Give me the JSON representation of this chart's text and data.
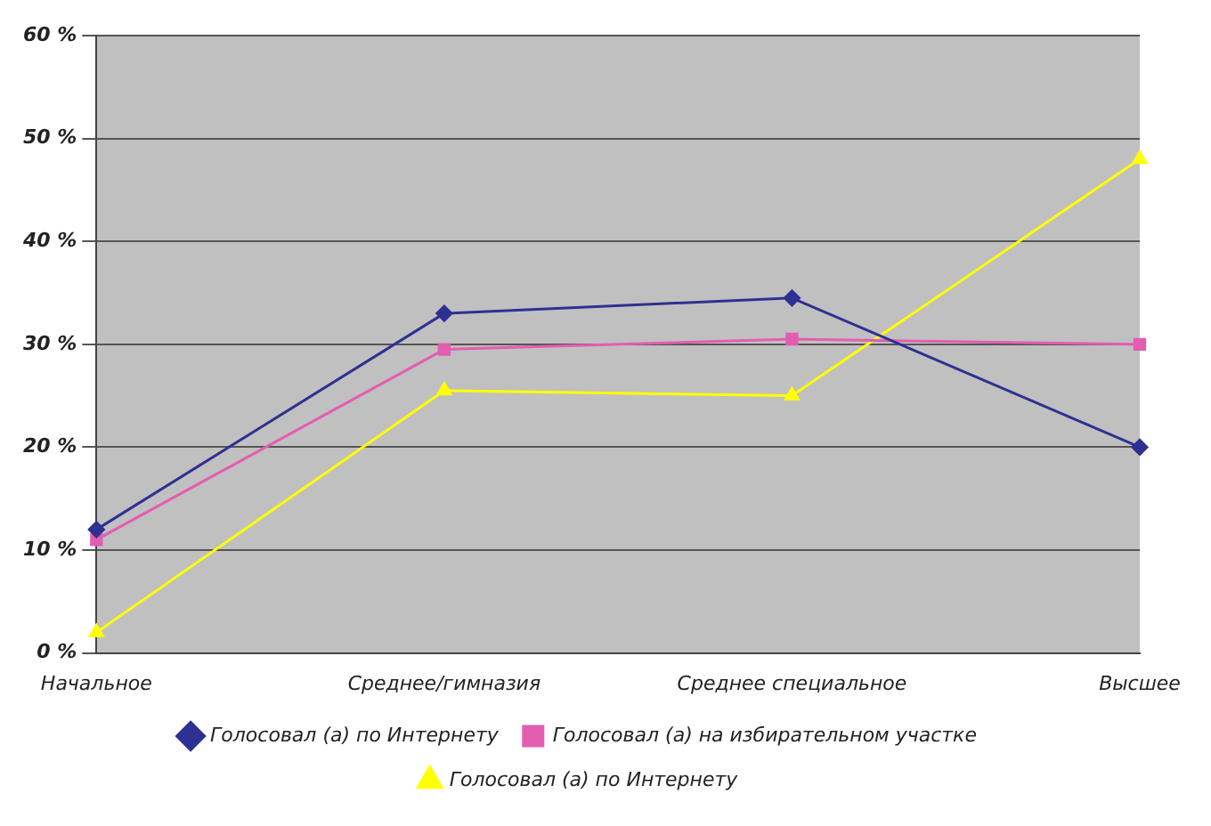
{
  "chart_data": {
    "type": "line",
    "categories": [
      "Начальное",
      "Среднее/гимназия",
      "Среднее специальное",
      "Высшее"
    ],
    "series": [
      {
        "name": "Голосовал (а) по Интернету",
        "color": "#2e3192",
        "marker": "diamond",
        "values": [
          12,
          33,
          34.5,
          20
        ]
      },
      {
        "name": "Голосовал (а) на избирательном участке",
        "color": "#e35db0",
        "marker": "square",
        "values": [
          11,
          29.5,
          30.5,
          30
        ]
      },
      {
        "name": "Голосовал (а) по Интернету",
        "color": "#ffff00",
        "marker": "triangle",
        "values": [
          2,
          25.5,
          25,
          48
        ]
      }
    ],
    "ylim": [
      0,
      60
    ],
    "yticks": [
      {
        "value": 0,
        "label": "0 %"
      },
      {
        "value": 10,
        "label": "10 %"
      },
      {
        "value": 20,
        "label": "20 %"
      },
      {
        "value": 30,
        "label": "30 %"
      },
      {
        "value": 40,
        "label": "40 %"
      },
      {
        "value": 50,
        "label": "50 %"
      },
      {
        "value": 60,
        "label": "60 %"
      }
    ],
    "grid": "y",
    "legend": "bottom"
  }
}
